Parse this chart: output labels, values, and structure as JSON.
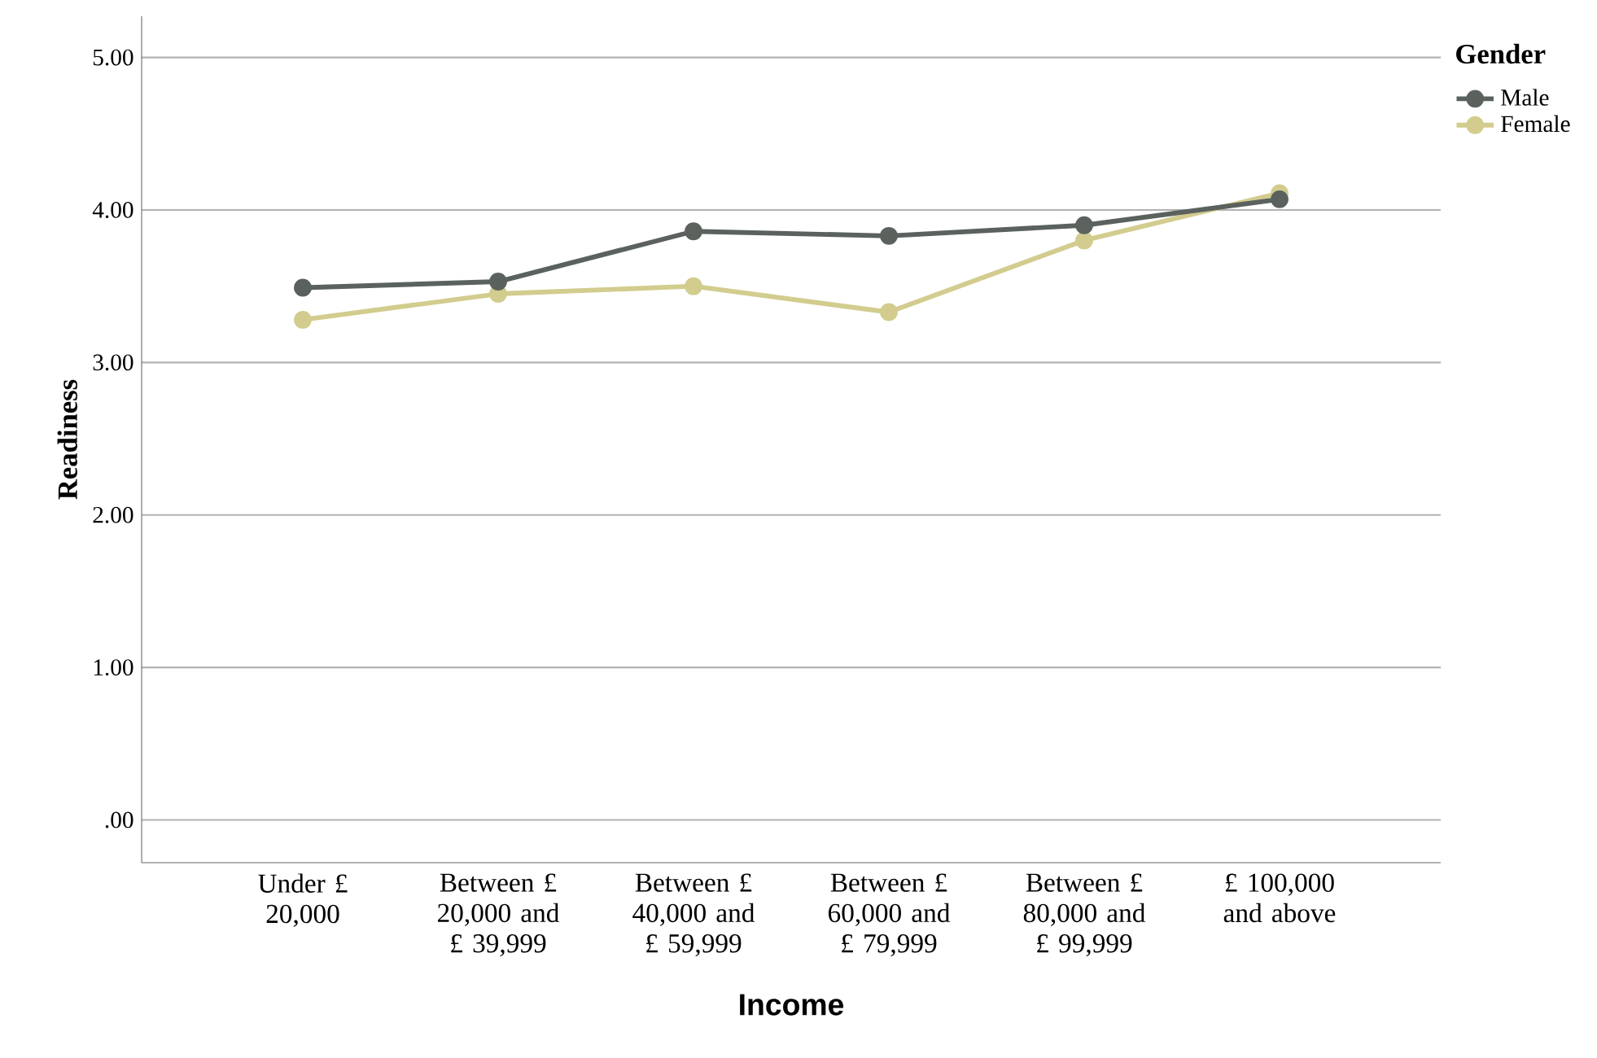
{
  "chart_data": {
    "type": "line",
    "xlabel": "Income",
    "ylabel": "Readiness",
    "legend_title": "Gender",
    "categories": [
      "Under £ 20,000",
      "Between £ 20,000 and £ 39,999",
      "Between £ 40,000 and £ 59,999",
      "Between £ 60,000 and £ 79,999",
      "Between £ 80,000 and £ 99,999",
      "£ 100,000 and above"
    ],
    "series": [
      {
        "name": "Male",
        "color": "#5b625e",
        "values": [
          3.49,
          3.53,
          3.86,
          3.83,
          3.9,
          4.07
        ]
      },
      {
        "name": "Female",
        "color": "#d2cc8e",
        "values": [
          3.28,
          3.45,
          3.5,
          3.33,
          3.8,
          4.11
        ]
      }
    ],
    "ylim": [
      -0.28,
      5.27
    ],
    "yticks": [
      {
        "value": 0,
        "label": ".00"
      },
      {
        "value": 1,
        "label": "1.00"
      },
      {
        "value": 2,
        "label": "2.00"
      },
      {
        "value": 3,
        "label": "3.00"
      },
      {
        "value": 4,
        "label": "4.00"
      },
      {
        "value": 5,
        "label": "5.00"
      }
    ],
    "grid": "y",
    "legend": "top right",
    "marker": "circle",
    "line_style": "solid"
  }
}
